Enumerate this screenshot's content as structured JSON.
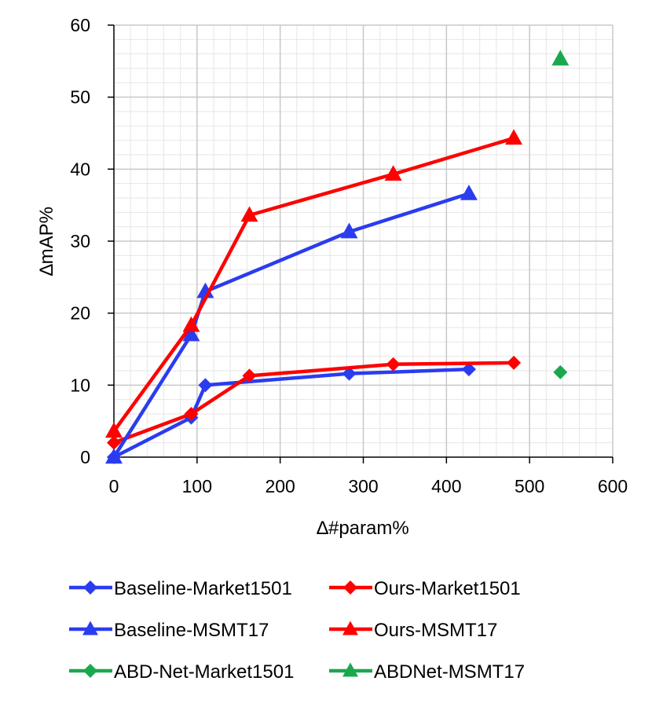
{
  "chart_data": {
    "type": "line",
    "title": "",
    "xlabel": "∆#param%",
    "ylabel": "∆mAP%",
    "xlim": [
      0,
      600
    ],
    "ylim": [
      0,
      60
    ],
    "x_ticks": [
      "0",
      "100",
      "200",
      "300",
      "400",
      "500",
      "600"
    ],
    "y_ticks": [
      "0",
      "10",
      "20",
      "30",
      "40",
      "50",
      "60"
    ],
    "grid": true,
    "legend_position": "bottom",
    "series": [
      {
        "name": "Baseline-Market1501",
        "color": "#2a3cf0",
        "marker": "diamond",
        "points": [
          [
            0,
            0
          ],
          [
            93,
            5.5
          ],
          [
            110,
            10
          ],
          [
            283,
            11.6
          ],
          [
            427,
            12.2
          ]
        ]
      },
      {
        "name": "Ours-Market1501",
        "color": "#ff0000",
        "marker": "diamond",
        "points": [
          [
            0,
            2
          ],
          [
            93,
            6
          ],
          [
            163,
            11.3
          ],
          [
            336,
            12.9
          ],
          [
            481,
            13.1
          ]
        ]
      },
      {
        "name": "Baseline-MSMT17",
        "color": "#2a3cf0",
        "marker": "triangle",
        "points": [
          [
            0,
            0
          ],
          [
            93,
            17
          ],
          [
            110,
            23
          ],
          [
            283,
            31.3
          ],
          [
            427,
            36.6
          ]
        ]
      },
      {
        "name": "Ours-MSMT17",
        "color": "#ff0000",
        "marker": "triangle",
        "points": [
          [
            0,
            3.6
          ],
          [
            93,
            18.3
          ],
          [
            163,
            33.6
          ],
          [
            336,
            39.3
          ],
          [
            481,
            44.3
          ]
        ]
      },
      {
        "name": "ABD-Net-Market1501",
        "color": "#1aa84f",
        "marker": "diamond",
        "points": [
          [
            537,
            11.8
          ]
        ]
      },
      {
        "name": "ABDNet-MSMT17",
        "color": "#1aa84f",
        "marker": "triangle",
        "points": [
          [
            537,
            55.3
          ]
        ]
      }
    ]
  }
}
